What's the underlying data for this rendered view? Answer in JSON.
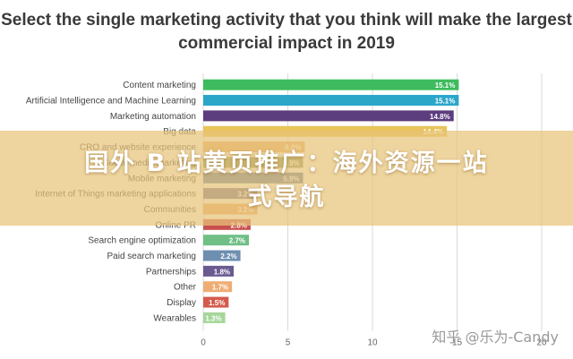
{
  "chart_data": {
    "type": "bar",
    "orientation": "horizontal",
    "title": "Select the single marketing activity that you think will make the largest commercial impact in 2019",
    "categories": [
      "Content marketing",
      "Artificial Intelligence and Machine Learning",
      "Marketing automation",
      "Big data",
      "CRO and website experience",
      "Social media marketing",
      "Mobile marketing",
      "Internet of Things marketing applications",
      "Communities",
      "Online PR",
      "Search engine optimization",
      "Paid search marketing",
      "Partnerships",
      "Other",
      "Display",
      "Wearables"
    ],
    "values": [
      15.1,
      15.1,
      14.8,
      14.4,
      6.0,
      5.9,
      5.9,
      3.2,
      3.2,
      2.8,
      2.7,
      2.2,
      1.8,
      1.7,
      1.5,
      1.3
    ],
    "data_labels": [
      "15.1%",
      "15.1%",
      "14.8%",
      "14.4%",
      "6.0%",
      "5.9%",
      "5.9%",
      "3.2%",
      "3.2%",
      "2.8%",
      "2.7%",
      "2.2%",
      "1.8%",
      "1.7%",
      "1.5%",
      "1.3%"
    ],
    "colors": [
      "#3dbb5e",
      "#2ba6c9",
      "#5c3d7e",
      "#e8c45a",
      "#e9ad6e",
      "#8a9a60",
      "#5b78a8",
      "#6c6c9a",
      "#e8a86c",
      "#c94f4f",
      "#6fbf87",
      "#6f8fb1",
      "#6a5a90",
      "#efad74",
      "#d45b4c",
      "#a6d69a"
    ],
    "xlim": [
      0,
      20
    ],
    "xticks": [
      "0",
      "5",
      "10",
      "15",
      "20"
    ],
    "grid": true
  },
  "overlay": {
    "banner_line1": "国外 B 站黄页推广：海外资源一站",
    "banner_line2": "式导航",
    "watermark": "知乎 @乐为-Candy"
  }
}
